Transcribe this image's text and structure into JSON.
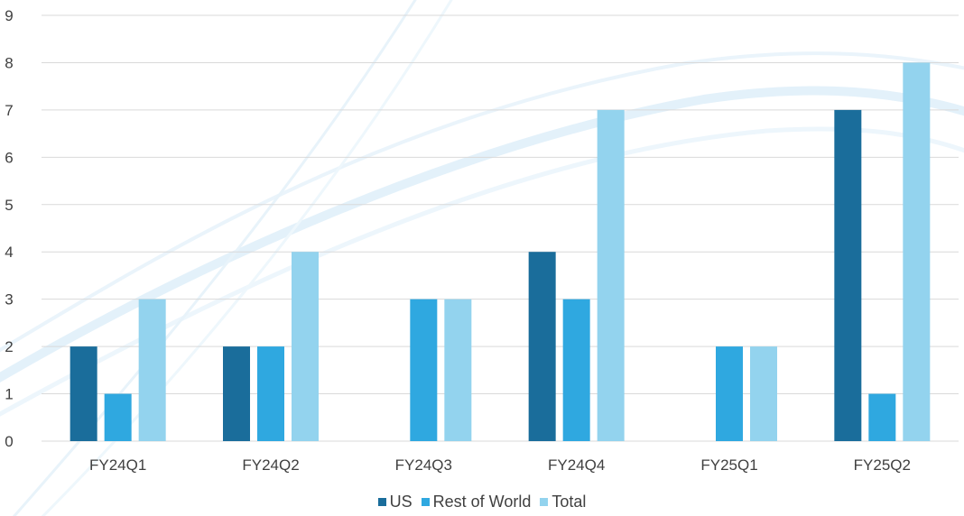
{
  "chart_data": {
    "type": "bar",
    "title": "",
    "xlabel": "",
    "ylabel": "",
    "categories": [
      "FY24Q1",
      "FY24Q2",
      "FY24Q3",
      "FY24Q4",
      "FY25Q1",
      "FY25Q2"
    ],
    "series": [
      {
        "name": "US",
        "color": "#1a6d9b",
        "values": [
          2,
          2,
          0,
          4,
          0,
          7
        ]
      },
      {
        "name": "Rest of World",
        "color": "#2fa8e0",
        "values": [
          1,
          2,
          3,
          3,
          2,
          1
        ]
      },
      {
        "name": "Total",
        "color": "#93d3ee",
        "values": [
          3,
          4,
          3,
          7,
          2,
          8
        ]
      }
    ],
    "ylim": [
      0,
      9
    ],
    "yticks": [
      "0",
      "1",
      "2",
      "3",
      "4",
      "5",
      "6",
      "7",
      "8",
      "9"
    ],
    "grid": true,
    "legend_position": "bottom"
  }
}
